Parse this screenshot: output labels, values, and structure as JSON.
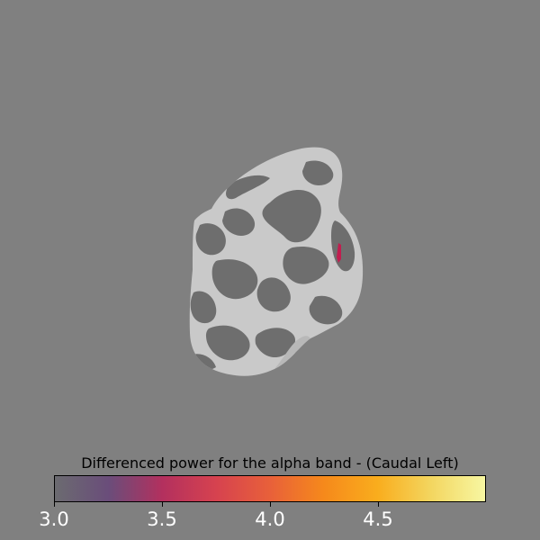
{
  "figure": {
    "background": "#808080",
    "view_label": "Caudal Left"
  },
  "brain": {
    "description_icon": "cortical-surface-icon",
    "sulcus_color": "#6e6e6e",
    "gyrus_color": "#c9c9c9",
    "activation_color": "#c21d4f"
  },
  "colorbar": {
    "title": "Differenced power for the alpha band - (Caudal Left)",
    "min": 3.0,
    "max": 5.0,
    "colormap": "inferno-like",
    "colors": [
      "#6b6b70",
      "#6a4d7a",
      "#b3305e",
      "#d6424f",
      "#e8603a",
      "#f6891b",
      "#f9ad1d",
      "#f3d660",
      "#f7f7a2"
    ],
    "ticks": [
      {
        "value": 3.0,
        "label": "3.0"
      },
      {
        "value": 3.5,
        "label": "3.5"
      },
      {
        "value": 4.0,
        "label": "4.0"
      },
      {
        "value": 4.5,
        "label": "4.5"
      }
    ]
  }
}
